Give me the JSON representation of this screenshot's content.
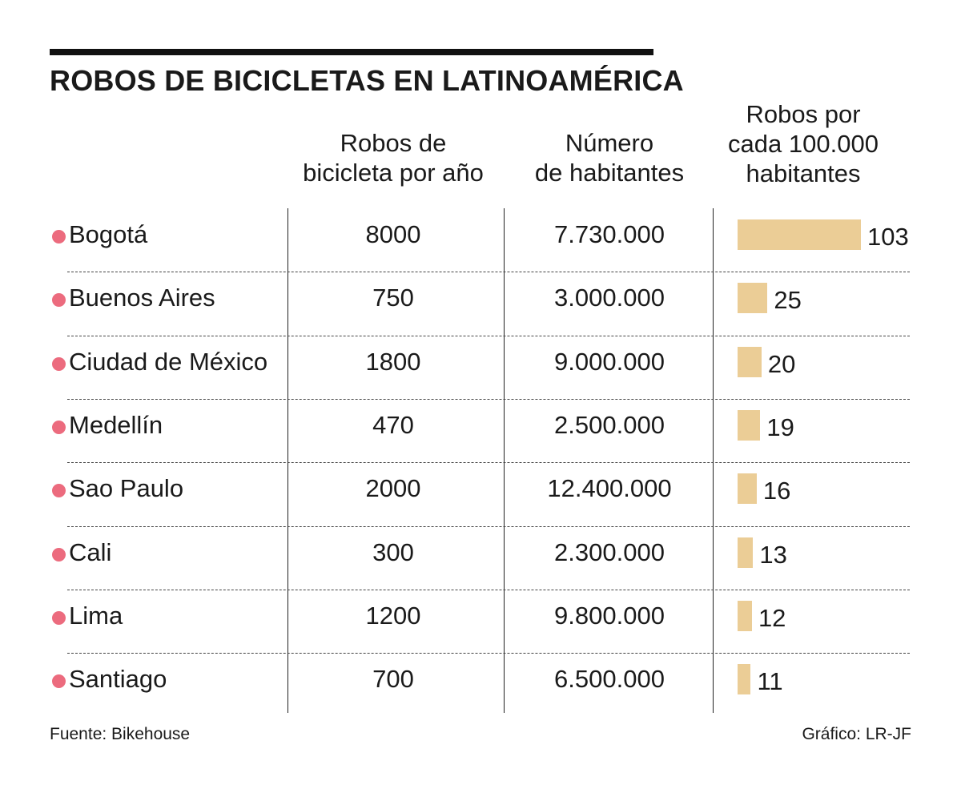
{
  "title": "ROBOS DE BICICLETAS EN LATINOAMÉRICA",
  "headers": {
    "robos": "Robos de\nbicicleta por año",
    "habitantes": "Número\nde habitantes",
    "rate": "Robos por\ncada 100.000\nhabitantes"
  },
  "colors": {
    "bullet": "#ec6b7e",
    "bar": "#ebcd96"
  },
  "chart_data": {
    "type": "table",
    "title": "ROBOS DE BICICLETAS EN LATINOAMÉRICA",
    "columns": [
      "Robos de bicicleta por año",
      "Número de habitantes",
      "Robos por cada 100.000 habitantes"
    ],
    "rows": [
      {
        "city": "Bogotá",
        "robos": "8000",
        "habitantes": "7.730.000",
        "rate": 103
      },
      {
        "city": "Buenos Aires",
        "robos": "750",
        "habitantes": "3.000.000",
        "rate": 25
      },
      {
        "city": "Ciudad de México",
        "robos": "1800",
        "habitantes": "9.000.000",
        "rate": 20
      },
      {
        "city": "Medellín",
        "robos": "470",
        "habitantes": "2.500.000",
        "rate": 19
      },
      {
        "city": "Sao Paulo",
        "robos": "2000",
        "habitantes": "12.400.000",
        "rate": 16
      },
      {
        "city": "Cali",
        "robos": "300",
        "habitantes": "2.300.000",
        "rate": 13
      },
      {
        "city": "Lima",
        "robos": "1200",
        "habitantes": "9.800.000",
        "rate": 12
      },
      {
        "city": "Santiago",
        "robos": "700",
        "habitantes": "6.500.000",
        "rate": 11
      }
    ]
  },
  "footer": {
    "source": "Fuente:  Bikehouse",
    "credit": "Gráfico: LR-JF"
  }
}
